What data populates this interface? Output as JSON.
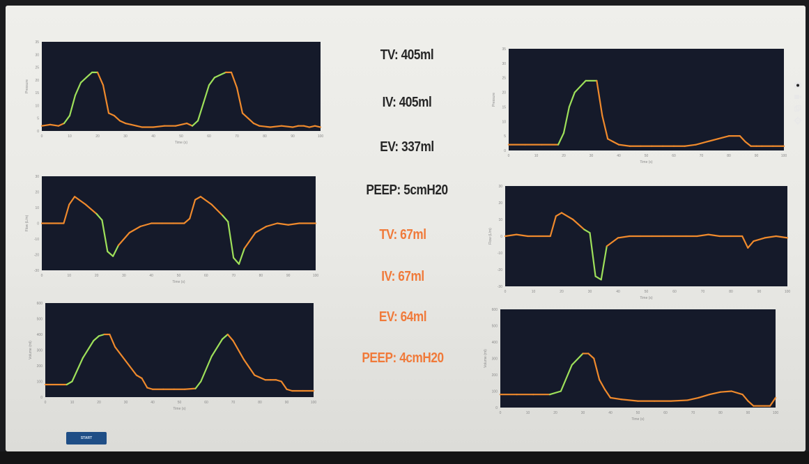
{
  "theme": {
    "plot_bg": "#151a2a",
    "trace_orange": "#f08a2c",
    "trace_green": "#9ee05a",
    "stat_dark": "#262626",
    "stat_orange": "#f07a3a"
  },
  "stats_group1": [
    {
      "text": "TV: 405ml"
    },
    {
      "text": "IV: 405ml"
    },
    {
      "text": "EV: 337ml"
    },
    {
      "text": "PEEP: 5cmH20"
    }
  ],
  "stats_group2": [
    {
      "text": "TV: 67ml"
    },
    {
      "text": "IV: 67ml"
    },
    {
      "text": "EV: 64ml"
    },
    {
      "text": "PEEP: 4cmH20"
    }
  ],
  "toolbar": {
    "icons": [
      "camera-icon",
      "video-icon",
      "copy-icon",
      "settings-icon"
    ]
  },
  "start_button": {
    "label": "START"
  },
  "chart_data": [
    {
      "type": "line",
      "name": "left-pressure",
      "ylabel": "Pressure",
      "xlabel": "Time (s)",
      "xlim": [
        0,
        100
      ],
      "ylim": [
        0,
        35
      ],
      "xticks": [
        "0",
        "10",
        "20",
        "30",
        "40",
        "50",
        "60",
        "70",
        "80",
        "90",
        "100"
      ],
      "yticks": [
        "0",
        "5",
        "10",
        "15",
        "20",
        "25",
        "30",
        "35"
      ],
      "x": [
        0,
        3,
        6,
        8,
        10,
        12,
        14,
        16,
        18,
        20,
        22,
        24,
        26,
        28,
        30,
        32,
        34,
        36,
        40,
        44,
        48,
        52,
        54,
        56,
        58,
        60,
        62,
        64,
        66,
        68,
        70,
        72,
        74,
        76,
        78,
        82,
        86,
        90,
        92,
        94,
        96,
        98,
        100
      ],
      "y": [
        2,
        2.5,
        2,
        3,
        6,
        14,
        19,
        21,
        23,
        23,
        18,
        7,
        6,
        4,
        3,
        2.5,
        2,
        1.5,
        1.5,
        2,
        2,
        3,
        2,
        4,
        11,
        18,
        21,
        22,
        23,
        23,
        17,
        7,
        5,
        3,
        2,
        1.5,
        2,
        1.5,
        2,
        2,
        1.5,
        2,
        1.5
      ],
      "green_range": [
        [
          8,
          20
        ],
        [
          54,
          66
        ]
      ]
    },
    {
      "type": "line",
      "name": "left-flow",
      "ylabel": "Flow (L/m)",
      "xlabel": "Time (s)",
      "xlim": [
        0,
        100
      ],
      "ylim": [
        -30,
        30
      ],
      "xticks": [
        "0",
        "10",
        "20",
        "30",
        "40",
        "50",
        "60",
        "70",
        "80",
        "90",
        "100"
      ],
      "yticks": [
        "-30",
        "-20",
        "-10",
        "0",
        "10",
        "20",
        "30"
      ],
      "x": [
        0,
        6,
        8,
        10,
        12,
        16,
        20,
        22,
        24,
        26,
        28,
        32,
        36,
        40,
        44,
        48,
        52,
        54,
        56,
        58,
        62,
        66,
        68,
        70,
        72,
        74,
        78,
        82,
        86,
        90,
        94,
        98,
        100
      ],
      "y": [
        0,
        0,
        0,
        12,
        17,
        12,
        6,
        2,
        -18,
        -21,
        -14,
        -6,
        -2,
        0,
        0,
        0,
        0,
        3,
        15,
        17,
        12,
        5,
        1,
        -22,
        -26,
        -16,
        -6,
        -2,
        0,
        -1,
        0,
        0,
        0
      ],
      "green_range": [
        [
          20,
          28
        ],
        [
          66,
          74
        ]
      ]
    },
    {
      "type": "line",
      "name": "left-volume",
      "ylabel": "Volume (ml)",
      "xlabel": "Time (s)",
      "xlim": [
        0,
        100
      ],
      "ylim": [
        0,
        600
      ],
      "xticks": [
        "0",
        "10",
        "20",
        "30",
        "40",
        "50",
        "60",
        "70",
        "80",
        "90",
        "100"
      ],
      "yticks": [
        "0",
        "100",
        "200",
        "300",
        "400",
        "500",
        "600"
      ],
      "x": [
        0,
        8,
        10,
        14,
        18,
        20,
        22,
        24,
        26,
        30,
        34,
        36,
        38,
        40,
        44,
        48,
        52,
        56,
        58,
        62,
        66,
        68,
        70,
        74,
        78,
        82,
        84,
        86,
        88,
        90,
        92,
        96,
        100
      ],
      "y": [
        80,
        80,
        100,
        250,
        360,
        390,
        400,
        400,
        320,
        230,
        140,
        120,
        60,
        50,
        50,
        50,
        50,
        55,
        100,
        260,
        370,
        400,
        360,
        240,
        140,
        110,
        110,
        110,
        100,
        50,
        40,
        40,
        40
      ],
      "green_range": [
        [
          8,
          22
        ],
        [
          56,
          68
        ]
      ]
    },
    {
      "type": "line",
      "name": "right-pressure",
      "ylabel": "Pressure",
      "xlabel": "Time (s)",
      "xlim": [
        0,
        100
      ],
      "ylim": [
        0,
        35
      ],
      "xticks": [
        "0",
        "10",
        "20",
        "30",
        "40",
        "50",
        "60",
        "70",
        "80",
        "90",
        "100"
      ],
      "yticks": [
        "0",
        "5",
        "10",
        "15",
        "20",
        "25",
        "30",
        "35"
      ],
      "x": [
        0,
        6,
        12,
        18,
        20,
        22,
        24,
        28,
        32,
        34,
        36,
        38,
        40,
        44,
        48,
        52,
        56,
        60,
        64,
        68,
        72,
        76,
        80,
        84,
        86,
        88,
        90,
        92,
        96,
        100
      ],
      "y": [
        2,
        2,
        2,
        2,
        6,
        15,
        20,
        24,
        24,
        12,
        4,
        3,
        2,
        1.5,
        1.5,
        1.5,
        1.5,
        1.5,
        1.5,
        2,
        3,
        4,
        5,
        5,
        3,
        1.5,
        1.5,
        1.5,
        1.5,
        1.5
      ],
      "green_range": [
        [
          18,
          32
        ]
      ]
    },
    {
      "type": "line",
      "name": "right-flow",
      "ylabel": "Flow (L/m)",
      "xlabel": "Time (s)",
      "xlim": [
        0,
        100
      ],
      "ylim": [
        -30,
        30
      ],
      "xticks": [
        "0",
        "10",
        "20",
        "30",
        "40",
        "50",
        "60",
        "70",
        "80",
        "90",
        "100"
      ],
      "yticks": [
        "-30",
        "-20",
        "-10",
        "0",
        "10",
        "20",
        "30"
      ],
      "x": [
        0,
        4,
        8,
        12,
        16,
        18,
        20,
        24,
        28,
        30,
        32,
        34,
        36,
        40,
        44,
        48,
        52,
        56,
        60,
        64,
        68,
        72,
        76,
        80,
        84,
        86,
        88,
        92,
        96,
        100
      ],
      "y": [
        0,
        1,
        0,
        0,
        0,
        12,
        14,
        10,
        4,
        2,
        -24,
        -26,
        -6,
        -1,
        0,
        0,
        0,
        0,
        0,
        0,
        0,
        1,
        0,
        0,
        0,
        -7,
        -3,
        -1,
        0,
        -1
      ],
      "green_range": [
        [
          28,
          36
        ]
      ]
    },
    {
      "type": "line",
      "name": "right-volume",
      "ylabel": "Volume (ml)",
      "xlabel": "Time (s)",
      "xlim": [
        0,
        100
      ],
      "ylim": [
        0,
        600
      ],
      "xticks": [
        "0",
        "10",
        "20",
        "30",
        "40",
        "50",
        "60",
        "70",
        "80",
        "90",
        "100"
      ],
      "yticks": [
        "0",
        "100",
        "200",
        "300",
        "400",
        "500",
        "600"
      ],
      "x": [
        0,
        6,
        12,
        18,
        22,
        26,
        30,
        32,
        34,
        36,
        38,
        40,
        44,
        50,
        56,
        62,
        68,
        72,
        76,
        80,
        84,
        88,
        90,
        92,
        94,
        96,
        98,
        100
      ],
      "y": [
        80,
        80,
        80,
        80,
        100,
        260,
        330,
        330,
        300,
        170,
        110,
        60,
        50,
        40,
        40,
        40,
        45,
        60,
        80,
        95,
        100,
        80,
        40,
        10,
        10,
        10,
        10,
        60
      ],
      "green_range": [
        [
          18,
          30
        ]
      ]
    }
  ]
}
